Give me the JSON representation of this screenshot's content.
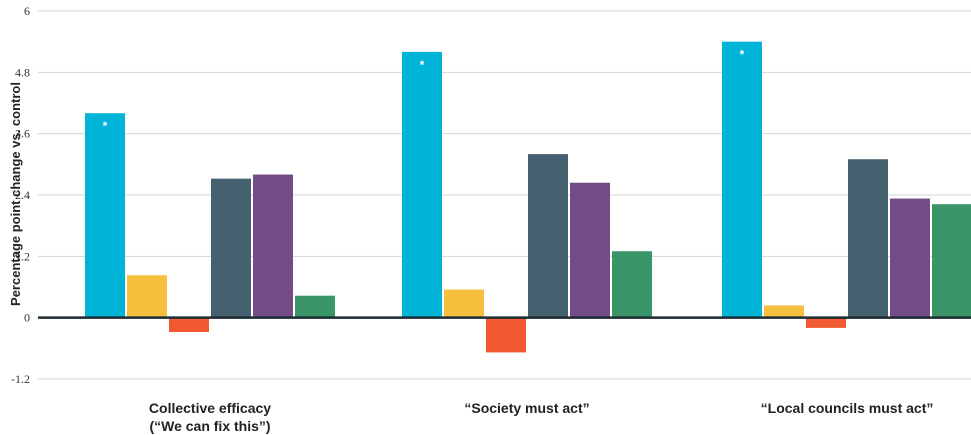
{
  "chart_data": {
    "type": "bar",
    "ylabel": "Percentage point change vs. control",
    "ylim": [
      -1.2,
      6
    ],
    "yticks": [
      "6",
      "4.8",
      "3.6",
      "2.4",
      "1.2",
      "0",
      "-1.2"
    ],
    "categories": [
      [
        "Collective efficacy",
        "(“We can fix this”)"
      ],
      [
        "“Society must act”"
      ],
      [
        "“Local councils must act”"
      ]
    ],
    "series": [
      {
        "color": "#00b4d8",
        "values": [
          4.0,
          5.2,
          5.4
        ],
        "markers": [
          "*",
          "*",
          "*"
        ]
      },
      {
        "color": "#f4c03e",
        "values": [
          0.83,
          0.55,
          0.24
        ],
        "markers": [
          "",
          "",
          ""
        ]
      },
      {
        "color": "#f15a30",
        "values": [
          -0.28,
          -0.68,
          -0.2
        ],
        "markers": [
          "",
          "",
          ""
        ]
      },
      {
        "color": "#45606e",
        "values": [
          2.72,
          3.2,
          3.1
        ],
        "markers": [
          "",
          "",
          ""
        ]
      },
      {
        "color": "#744a87",
        "values": [
          2.8,
          2.64,
          2.33
        ],
        "markers": [
          "",
          "",
          ""
        ]
      },
      {
        "color": "#3a9668",
        "values": [
          0.43,
          1.3,
          2.22
        ],
        "markers": [
          "",
          "",
          ""
        ]
      }
    ],
    "grid": true,
    "legend": "none"
  }
}
